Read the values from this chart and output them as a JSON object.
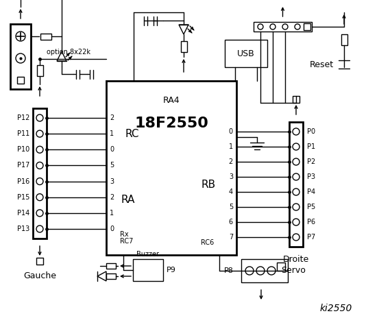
{
  "bg": "#ffffff",
  "lc": "#000000",
  "chip_label": "18F2550",
  "chip_sub": "RA4",
  "rc_label": "RC",
  "ra_label": "RA",
  "rb_label": "RB",
  "rc_pins": [
    "2",
    "1",
    "0"
  ],
  "ra_pins": [
    "5",
    "3",
    "2",
    "1",
    "0"
  ],
  "rb_pins": [
    "0",
    "1",
    "2",
    "3",
    "4",
    "5",
    "6",
    "7"
  ],
  "left_port_labels": [
    "P12",
    "P11",
    "P10",
    "P17",
    "P16",
    "P15",
    "P14",
    "P13"
  ],
  "right_port_labels": [
    "P0",
    "P1",
    "P2",
    "P3",
    "P4",
    "P5",
    "P6",
    "P7"
  ],
  "rx_text": "Rx",
  "rc7_text": "RC7",
  "rc6_text": "RC6",
  "option_text": "option 8x22k",
  "usb_text": "USB",
  "reset_text": "Reset",
  "buzzer_text": "Buzzer",
  "p9_text": "P9",
  "p8_text": "P8",
  "servo_text": "Servo",
  "gauche_text": "Gauche",
  "droite_text": "Droite",
  "ki_text": "ki2550"
}
